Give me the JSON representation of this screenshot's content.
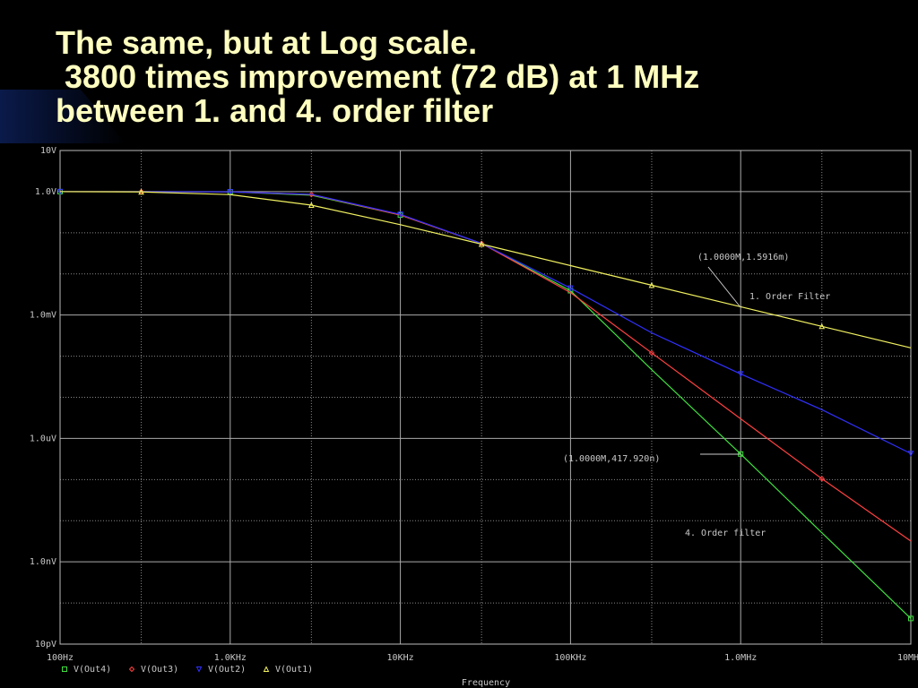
{
  "chart_data": {
    "type": "line",
    "title": [
      "The same, but at Log scale.",
      " 3800 times improvement (72 dB) at 1 MHz",
      "between 1. and 4. order filter"
    ],
    "xlabel": "Frequency",
    "xscale": "log",
    "yscale": "log",
    "grid": true,
    "x": [
      100,
      300,
      1000,
      3000,
      10000,
      30000,
      100000,
      300000,
      1000000,
      3000000,
      10000000
    ],
    "xlim": [
      100,
      10000000
    ],
    "xticks": [
      {
        "value": 100,
        "label": "100Hz"
      },
      {
        "value": 1000,
        "label": "1.0KHz"
      },
      {
        "value": 10000,
        "label": "10KHz"
      },
      {
        "value": 100000,
        "label": "100KHz"
      },
      {
        "value": 1000000,
        "label": "1.0MHz"
      },
      {
        "value": 10000000,
        "label": "10MHz"
      }
    ],
    "xminorticks": [
      300,
      3000,
      30000,
      300000,
      3000000
    ],
    "ylim": [
      1e-11,
      10
    ],
    "yticks": [
      {
        "value": 10,
        "label": "10V"
      },
      {
        "value": 1,
        "label": "1.0V"
      },
      {
        "value": 0.001,
        "label": "1.0mV"
      },
      {
        "value": 1e-06,
        "label": "1.0uV"
      },
      {
        "value": 1e-09,
        "label": "1.0nV"
      },
      {
        "value": 1e-11,
        "label": "10pV"
      }
    ],
    "yminorticks": [
      0.1,
      0.01,
      0.0001,
      1e-05,
      1e-07,
      1e-08,
      1e-10
    ],
    "series": [
      {
        "name": "V(Out4)",
        "color": "#40e040",
        "marker": "square",
        "values": [
          1,
          1,
          0.99,
          0.82,
          0.27,
          0.055,
          0.0039,
          4.7e-05,
          4.1792e-07,
          5.1e-09,
          4.2e-11
        ]
      },
      {
        "name": "V(Out3)",
        "color": "#ff4040",
        "marker": "diamond",
        "values": [
          1,
          1,
          0.99,
          0.85,
          0.27,
          0.055,
          0.0035,
          0.00012,
          3e-06,
          1.05e-07,
          3.2e-09
        ]
      },
      {
        "name": "V(Out2)",
        "color": "#3030ff",
        "marker": "triangle-down",
        "values": [
          1,
          1,
          0.99,
          0.86,
          0.28,
          0.055,
          0.0045,
          0.00037,
          3.7e-05,
          5e-06,
          4.3e-07
        ]
      },
      {
        "name": "V(Out1)",
        "color": "#f0f060",
        "marker": "triangle",
        "values": [
          0.998,
          0.983,
          0.847,
          0.469,
          0.157,
          0.053,
          0.01591,
          0.005305,
          0.0015916,
          0.0005305,
          0.00015916
        ]
      }
    ],
    "annotations": [
      "(1.0000M,1.5916m)",
      "1. Order Filter",
      "(1.0000M,417.920n)",
      "4. Order filter"
    ]
  }
}
